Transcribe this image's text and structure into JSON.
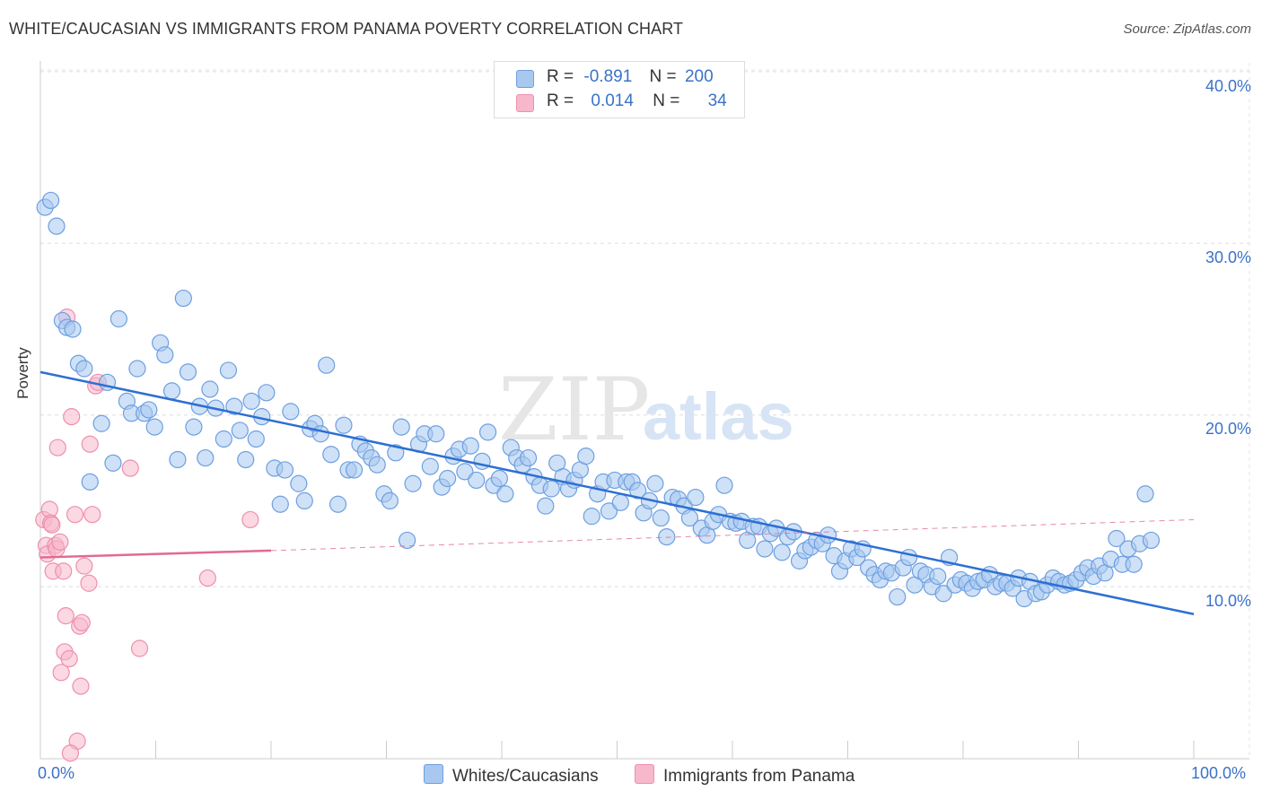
{
  "title": "WHITE/CAUCASIAN VS IMMIGRANTS FROM PANAMA POVERTY CORRELATION CHART",
  "source": "Source: ZipAtlas.com",
  "watermark": {
    "zip": "ZIP",
    "atlas": "atlas"
  },
  "legend": {
    "rows": [
      {
        "r_label": "R =",
        "r_value": "-0.891",
        "n_label": "N =",
        "n_value": "200",
        "color": "#a8c8f0"
      },
      {
        "r_label": "R =",
        "r_value": "0.014",
        "n_label": "N =",
        "n_value": "34",
        "color": "#f7b8cb"
      }
    ]
  },
  "bottom_legend": {
    "series1": "Whites/Caucasians",
    "series2": "Immigrants from Panama"
  },
  "chart_data": {
    "type": "scatter",
    "ylabel": "Poverty",
    "xlabel": "",
    "xlim": [
      0,
      100
    ],
    "ylim": [
      0,
      42
    ],
    "x_tick_labels": [
      "0.0%",
      "100.0%"
    ],
    "y_ticks": [
      10,
      20,
      30,
      40
    ],
    "y_tick_labels": [
      "10.0%",
      "20.0%",
      "30.0%",
      "40.0%"
    ],
    "grid": true,
    "legend_position": "top-center",
    "colors": {
      "blue_fill": "#a8c8f0",
      "blue_stroke": "#6d9fe0",
      "blue_line": "#2d6fd2",
      "pink_fill": "#f7b8cb",
      "pink_stroke": "#ee8fae",
      "pink_line": "#e06a93"
    },
    "series": [
      {
        "name": "Whites/Caucasians",
        "color": "#a8c8f0",
        "trend": {
          "x": [
            0,
            100
          ],
          "y": [
            22.5,
            8.4
          ]
        },
        "points": [
          [
            0.4,
            32.1
          ],
          [
            0.9,
            32.5
          ],
          [
            1.4,
            31.0
          ],
          [
            1.9,
            25.5
          ],
          [
            2.3,
            25.1
          ],
          [
            2.8,
            25.0
          ],
          [
            3.3,
            23.0
          ],
          [
            3.8,
            22.7
          ],
          [
            4.3,
            16.1
          ],
          [
            5.3,
            19.5
          ],
          [
            5.8,
            21.9
          ],
          [
            6.3,
            17.2
          ],
          [
            6.8,
            25.6
          ],
          [
            7.5,
            20.8
          ],
          [
            7.9,
            20.1
          ],
          [
            8.4,
            22.7
          ],
          [
            9.0,
            20.1
          ],
          [
            9.4,
            20.3
          ],
          [
            9.9,
            19.3
          ],
          [
            10.4,
            24.2
          ],
          [
            10.8,
            23.5
          ],
          [
            11.4,
            21.4
          ],
          [
            11.9,
            17.4
          ],
          [
            12.4,
            26.8
          ],
          [
            12.8,
            22.5
          ],
          [
            13.3,
            19.3
          ],
          [
            13.8,
            20.5
          ],
          [
            14.3,
            17.5
          ],
          [
            14.7,
            21.5
          ],
          [
            15.2,
            20.4
          ],
          [
            15.9,
            18.6
          ],
          [
            16.3,
            22.6
          ],
          [
            16.8,
            20.5
          ],
          [
            17.3,
            19.1
          ],
          [
            17.8,
            17.4
          ],
          [
            18.3,
            20.8
          ],
          [
            18.7,
            18.6
          ],
          [
            19.2,
            19.9
          ],
          [
            19.6,
            21.3
          ],
          [
            20.3,
            16.9
          ],
          [
            20.8,
            14.8
          ],
          [
            21.2,
            16.8
          ],
          [
            21.7,
            20.2
          ],
          [
            22.4,
            16.0
          ],
          [
            22.9,
            15.0
          ],
          [
            23.4,
            19.2
          ],
          [
            23.8,
            19.5
          ],
          [
            24.3,
            18.9
          ],
          [
            24.8,
            22.9
          ],
          [
            25.2,
            17.7
          ],
          [
            25.8,
            14.8
          ],
          [
            26.3,
            19.4
          ],
          [
            26.7,
            16.8
          ],
          [
            27.2,
            16.8
          ],
          [
            27.7,
            18.3
          ],
          [
            28.2,
            17.9
          ],
          [
            28.7,
            17.5
          ],
          [
            29.2,
            17.1
          ],
          [
            29.8,
            15.4
          ],
          [
            30.3,
            15.0
          ],
          [
            30.8,
            17.8
          ],
          [
            31.3,
            19.3
          ],
          [
            31.8,
            12.7
          ],
          [
            32.3,
            16.0
          ],
          [
            32.8,
            18.3
          ],
          [
            33.3,
            18.9
          ],
          [
            33.8,
            17.0
          ],
          [
            34.3,
            18.9
          ],
          [
            34.8,
            15.8
          ],
          [
            35.3,
            16.3
          ],
          [
            35.8,
            17.6
          ],
          [
            36.3,
            18.0
          ],
          [
            36.8,
            16.7
          ],
          [
            37.3,
            18.2
          ],
          [
            37.8,
            16.2
          ],
          [
            38.3,
            17.3
          ],
          [
            38.8,
            19.0
          ],
          [
            39.3,
            15.9
          ],
          [
            39.8,
            16.3
          ],
          [
            40.3,
            15.4
          ],
          [
            40.8,
            18.1
          ],
          [
            41.3,
            17.5
          ],
          [
            41.8,
            17.1
          ],
          [
            42.3,
            17.5
          ],
          [
            42.8,
            16.4
          ],
          [
            43.3,
            15.9
          ],
          [
            43.8,
            14.7
          ],
          [
            44.3,
            15.7
          ],
          [
            44.8,
            17.2
          ],
          [
            45.3,
            16.4
          ],
          [
            45.8,
            15.7
          ],
          [
            46.3,
            16.2
          ],
          [
            46.8,
            16.8
          ],
          [
            47.3,
            17.6
          ],
          [
            47.8,
            14.1
          ],
          [
            48.3,
            15.4
          ],
          [
            48.8,
            16.1
          ],
          [
            49.3,
            14.4
          ],
          [
            49.8,
            16.2
          ],
          [
            50.3,
            14.9
          ],
          [
            50.8,
            16.1
          ],
          [
            51.3,
            16.1
          ],
          [
            51.8,
            15.6
          ],
          [
            52.3,
            14.3
          ],
          [
            52.8,
            15.0
          ],
          [
            53.3,
            16.0
          ],
          [
            53.8,
            14.0
          ],
          [
            54.3,
            12.9
          ],
          [
            54.8,
            15.2
          ],
          [
            55.3,
            15.1
          ],
          [
            55.8,
            14.7
          ],
          [
            56.3,
            14.0
          ],
          [
            56.8,
            15.2
          ],
          [
            57.3,
            13.4
          ],
          [
            57.8,
            13.0
          ],
          [
            58.3,
            13.8
          ],
          [
            58.8,
            14.2
          ],
          [
            59.3,
            15.9
          ],
          [
            59.8,
            13.8
          ],
          [
            60.3,
            13.7
          ],
          [
            60.8,
            13.8
          ],
          [
            61.3,
            12.7
          ],
          [
            61.8,
            13.5
          ],
          [
            62.3,
            13.5
          ],
          [
            62.8,
            12.2
          ],
          [
            63.3,
            13.1
          ],
          [
            63.8,
            13.4
          ],
          [
            64.3,
            12.0
          ],
          [
            64.8,
            12.9
          ],
          [
            65.3,
            13.2
          ],
          [
            65.8,
            11.5
          ],
          [
            66.3,
            12.1
          ],
          [
            66.8,
            12.3
          ],
          [
            67.3,
            12.7
          ],
          [
            67.8,
            12.5
          ],
          [
            68.3,
            13.0
          ],
          [
            68.8,
            11.8
          ],
          [
            69.3,
            10.9
          ],
          [
            69.8,
            11.5
          ],
          [
            70.3,
            12.2
          ],
          [
            70.8,
            11.7
          ],
          [
            71.3,
            12.2
          ],
          [
            71.8,
            11.1
          ],
          [
            72.3,
            10.7
          ],
          [
            72.8,
            10.4
          ],
          [
            73.3,
            10.9
          ],
          [
            73.8,
            10.8
          ],
          [
            74.3,
            9.4
          ],
          [
            74.8,
            11.1
          ],
          [
            75.3,
            11.7
          ],
          [
            75.8,
            10.1
          ],
          [
            76.3,
            10.9
          ],
          [
            76.8,
            10.7
          ],
          [
            77.3,
            10.0
          ],
          [
            77.8,
            10.6
          ],
          [
            78.3,
            9.6
          ],
          [
            78.8,
            11.7
          ],
          [
            79.3,
            10.1
          ],
          [
            79.8,
            10.4
          ],
          [
            80.3,
            10.2
          ],
          [
            80.8,
            9.9
          ],
          [
            81.3,
            10.3
          ],
          [
            81.8,
            10.4
          ],
          [
            82.3,
            10.7
          ],
          [
            82.8,
            10.0
          ],
          [
            83.3,
            10.2
          ],
          [
            83.8,
            10.2
          ],
          [
            84.3,
            9.9
          ],
          [
            84.8,
            10.5
          ],
          [
            85.3,
            9.3
          ],
          [
            85.8,
            10.3
          ],
          [
            86.3,
            9.6
          ],
          [
            86.8,
            9.7
          ],
          [
            87.3,
            10.1
          ],
          [
            87.8,
            10.5
          ],
          [
            88.3,
            10.3
          ],
          [
            88.8,
            10.1
          ],
          [
            89.3,
            10.2
          ],
          [
            89.8,
            10.4
          ],
          [
            90.3,
            10.8
          ],
          [
            90.8,
            11.1
          ],
          [
            91.3,
            10.6
          ],
          [
            91.8,
            11.2
          ],
          [
            92.3,
            10.8
          ],
          [
            92.8,
            11.6
          ],
          [
            93.3,
            12.8
          ],
          [
            93.8,
            11.3
          ],
          [
            94.3,
            12.2
          ],
          [
            94.8,
            11.3
          ],
          [
            95.3,
            12.5
          ],
          [
            95.8,
            15.4
          ],
          [
            96.3,
            12.7
          ]
        ]
      },
      {
        "name": "Immigrants from Panama",
        "color": "#f7b8cb",
        "trend": {
          "x": [
            0,
            20
          ],
          "y": [
            11.7,
            12.1
          ],
          "dashed_to": [
            100,
            13.9
          ]
        },
        "points": [
          [
            0.3,
            13.9
          ],
          [
            0.5,
            12.4
          ],
          [
            0.6,
            11.9
          ],
          [
            0.8,
            14.5
          ],
          [
            0.9,
            13.7
          ],
          [
            1.0,
            13.6
          ],
          [
            1.1,
            10.9
          ],
          [
            1.3,
            12.4
          ],
          [
            1.4,
            12.2
          ],
          [
            1.5,
            18.1
          ],
          [
            1.7,
            12.6
          ],
          [
            1.8,
            5.0
          ],
          [
            2.0,
            10.9
          ],
          [
            2.1,
            6.2
          ],
          [
            2.2,
            8.3
          ],
          [
            2.3,
            25.7
          ],
          [
            2.5,
            5.8
          ],
          [
            2.7,
            19.9
          ],
          [
            3.0,
            14.2
          ],
          [
            3.2,
            1.0
          ],
          [
            3.4,
            7.7
          ],
          [
            3.5,
            4.2
          ],
          [
            3.6,
            7.9
          ],
          [
            3.8,
            11.2
          ],
          [
            4.2,
            10.2
          ],
          [
            4.3,
            18.3
          ],
          [
            4.5,
            14.2
          ],
          [
            4.8,
            21.7
          ],
          [
            5.0,
            21.9
          ],
          [
            7.8,
            16.9
          ],
          [
            8.6,
            6.4
          ],
          [
            14.5,
            10.5
          ],
          [
            18.2,
            13.9
          ],
          [
            2.6,
            0.3
          ]
        ]
      }
    ]
  }
}
